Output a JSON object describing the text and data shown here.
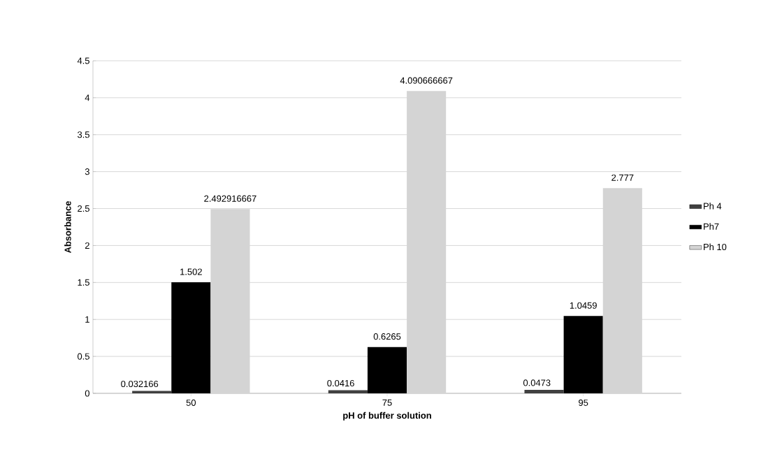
{
  "chart_data": {
    "type": "bar",
    "xlabel": "pH of buffer solution",
    "ylabel": "Absorbance",
    "categories": [
      "50",
      "75",
      "95"
    ],
    "series": [
      {
        "name": "Ph 4",
        "color": "#404040",
        "values": [
          0.032166,
          0.0416,
          0.0473
        ],
        "value_labels": [
          "0.032166",
          "0.0416",
          "0.0473"
        ]
      },
      {
        "name": "Ph7",
        "color": "#000000",
        "values": [
          1.502,
          0.6265,
          1.0459
        ],
        "value_labels": [
          "1.502",
          "0.6265",
          "1.0459"
        ]
      },
      {
        "name": "Ph 10",
        "color": "#d4d4d4",
        "values": [
          2.492916667,
          4.090666667,
          2.777
        ],
        "value_labels": [
          "2.492916667",
          "4.090666667",
          "2.777"
        ]
      }
    ],
    "ylim": [
      0,
      4.5
    ],
    "yticks": [
      0,
      0.5,
      1,
      1.5,
      2,
      2.5,
      3,
      3.5,
      4,
      4.5
    ],
    "grid": "y",
    "legend": "right"
  }
}
